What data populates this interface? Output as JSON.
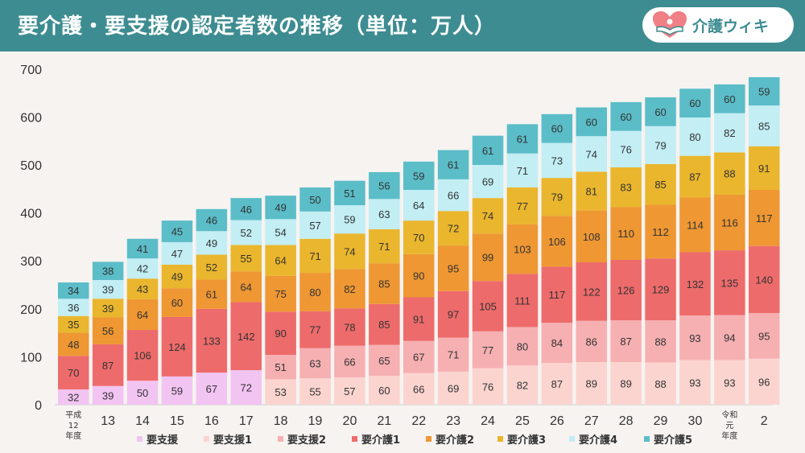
{
  "header": {
    "title": "要介護・要支援の認定者数の推移（単位：万人）",
    "brand": "介護ウィキ",
    "logo_icon": "heart-hands-icon"
  },
  "colors": {
    "header_bg": "#3d8c91",
    "background": "#f6f3f1",
    "series": [
      "#f2c4f2",
      "#fbd4d0",
      "#f6b0b2",
      "#ee6b6b",
      "#ee9733",
      "#eab62d",
      "#c2eef4",
      "#5bbdc8"
    ]
  },
  "chart_data": {
    "type": "bar",
    "stacked": true,
    "title": "要介護・要支援の認定者数の推移（単位：万人）",
    "categories": [
      "平成12年度",
      "13",
      "14",
      "15",
      "16",
      "17",
      "18",
      "19",
      "20",
      "21",
      "22",
      "23",
      "24",
      "25",
      "26",
      "27",
      "28",
      "29",
      "30",
      "令和元年度",
      "2"
    ],
    "category_labels": [
      [
        "平成",
        "12",
        "年度"
      ],
      [
        "13"
      ],
      [
        "14"
      ],
      [
        "15"
      ],
      [
        "16"
      ],
      [
        "17"
      ],
      [
        "18"
      ],
      [
        "19"
      ],
      [
        "20"
      ],
      [
        "21"
      ],
      [
        "22"
      ],
      [
        "23"
      ],
      [
        "24"
      ],
      [
        "25"
      ],
      [
        "26"
      ],
      [
        "27"
      ],
      [
        "28"
      ],
      [
        "29"
      ],
      [
        "30"
      ],
      [
        "令和",
        "元",
        "年度"
      ],
      [
        "2"
      ]
    ],
    "ylim": [
      0,
      700
    ],
    "yticks": [
      0,
      100,
      200,
      300,
      400,
      500,
      600,
      700
    ],
    "grid": false,
    "legend_position": "bottom",
    "series": [
      {
        "name": "要支援",
        "values": [
          32,
          39,
          50,
          59,
          67,
          72,
          null,
          null,
          null,
          null,
          null,
          null,
          null,
          null,
          null,
          null,
          null,
          null,
          null,
          null,
          null
        ]
      },
      {
        "name": "要支援1",
        "values": [
          null,
          null,
          null,
          null,
          null,
          null,
          53,
          55,
          57,
          60,
          66,
          69,
          76,
          82,
          87,
          89,
          89,
          88,
          93,
          93,
          96
        ]
      },
      {
        "name": "要支援2",
        "values": [
          null,
          null,
          null,
          null,
          null,
          null,
          51,
          63,
          66,
          65,
          67,
          71,
          77,
          80,
          84,
          86,
          87,
          88,
          93,
          94,
          95
        ]
      },
      {
        "name": "要介護1",
        "values": [
          70,
          87,
          106,
          124,
          133,
          142,
          90,
          77,
          78,
          85,
          91,
          97,
          105,
          111,
          117,
          122,
          126,
          129,
          132,
          135,
          140
        ]
      },
      {
        "name": "要介護2",
        "values": [
          48,
          56,
          64,
          60,
          61,
          64,
          75,
          80,
          82,
          85,
          90,
          95,
          99,
          103,
          106,
          108,
          110,
          112,
          114,
          116,
          117
        ]
      },
      {
        "name": "要介護3",
        "values": [
          35,
          39,
          43,
          49,
          52,
          55,
          64,
          71,
          74,
          71,
          70,
          72,
          74,
          77,
          79,
          81,
          83,
          85,
          87,
          88,
          91
        ]
      },
      {
        "name": "要介護4",
        "values": [
          36,
          39,
          42,
          47,
          49,
          52,
          54,
          57,
          59,
          63,
          64,
          66,
          69,
          71,
          73,
          74,
          76,
          79,
          80,
          82,
          85
        ]
      },
      {
        "name": "要介護5",
        "values": [
          34,
          38,
          41,
          45,
          46,
          46,
          49,
          50,
          51,
          56,
          59,
          61,
          61,
          61,
          60,
          60,
          60,
          60,
          60,
          60,
          59
        ]
      }
    ]
  }
}
